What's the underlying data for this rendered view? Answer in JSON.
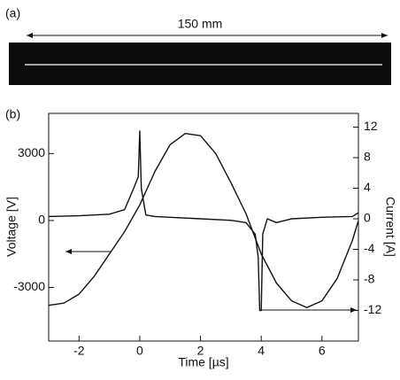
{
  "figure": {
    "panel_a": "(a)",
    "panel_b": "(b)",
    "scale": "150 mm"
  },
  "chart_data": {
    "type": "line",
    "xlabel": "Time [µs]",
    "ylabel": "Voltage [V]",
    "y2label": "Current [A]",
    "xlim": [
      -3,
      7.2
    ],
    "xticks": [
      -2,
      0,
      2,
      4,
      6
    ],
    "ylim": [
      -5400,
      4800
    ],
    "yticks": [
      -3000,
      0,
      3000
    ],
    "y2lim": [
      -16,
      13.8
    ],
    "y2ticks": [
      -12,
      -8,
      -4,
      0,
      4,
      8,
      12
    ],
    "series": [
      {
        "color": "#111111",
        "x": [
          -3,
          -2.5,
          -2,
          -1.5,
          -1,
          -0.5,
          0,
          0.5,
          1,
          1.5,
          2,
          2.5,
          3,
          3.5,
          4,
          4.5,
          5,
          5.5,
          6,
          6.5,
          7,
          7.2
        ],
        "values": [
          -3800,
          -3700,
          -3300,
          -2500,
          -1500,
          -500,
          700,
          2200,
          3400,
          3900,
          3800,
          3000,
          1700,
          300,
          -1500,
          -2800,
          -3600,
          -3900,
          -3600,
          -2600,
          -900,
          0
        ]
      },
      {
        "color": "#111111",
        "axis": "y2",
        "x": [
          -3,
          -2,
          -1,
          -0.5,
          -0.2,
          -0.05,
          0,
          0.05,
          0.2,
          0.5,
          1,
          2,
          3,
          3.5,
          3.8,
          3.9,
          3.95,
          4,
          4.05,
          4.2,
          4.5,
          5,
          6,
          7,
          7.2
        ],
        "values": [
          0.3,
          0.4,
          0.6,
          1.2,
          4,
          5.5,
          11.5,
          4,
          0.5,
          0.3,
          0.2,
          0,
          -0.2,
          -0.5,
          -2,
          -5,
          -12,
          -12,
          -2,
          0,
          -0.5,
          0,
          0.2,
          0.3,
          0.8
        ]
      }
    ]
  }
}
